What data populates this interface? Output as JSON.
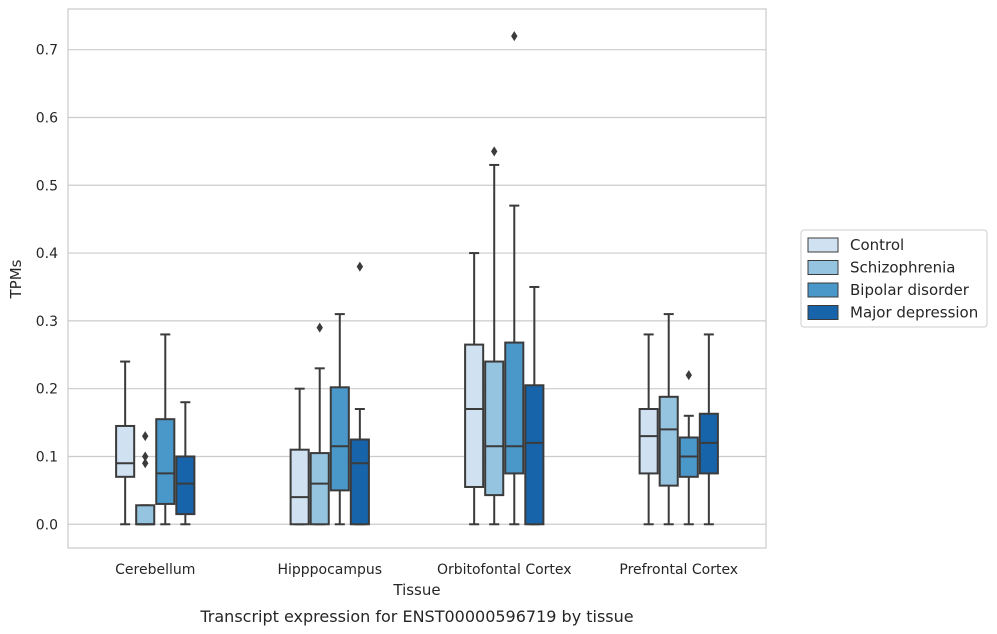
{
  "chart_data": {
    "type": "box",
    "categories": [
      "Cerebellum",
      "Hipppocampus",
      "Orbitofontal Cortex",
      "Prefrontal Cortex"
    ],
    "xlabel": "Tissue",
    "ylabel": "TPMs",
    "caption": "Transcript expression for ENST00000596719 by tissue",
    "ylim": [
      -0.035,
      0.76
    ],
    "yticks": [
      0.0,
      0.1,
      0.2,
      0.3,
      0.4,
      0.5,
      0.6,
      0.7
    ],
    "ytick_labels": [
      "0.0",
      "0.1",
      "0.2",
      "0.3",
      "0.4",
      "0.5",
      "0.6",
      "0.7"
    ],
    "grid": "horizontal",
    "legend_position": "right",
    "series": [
      {
        "name": "Control",
        "color": "#d0e1f2",
        "boxes": [
          {
            "whislo": 0.0,
            "q1": 0.07,
            "med": 0.09,
            "q3": 0.145,
            "whishi": 0.24,
            "fliers": []
          },
          {
            "whislo": 0.0,
            "q1": 0.0,
            "med": 0.04,
            "q3": 0.11,
            "whishi": 0.2,
            "fliers": []
          },
          {
            "whislo": 0.0,
            "q1": 0.055,
            "med": 0.17,
            "q3": 0.265,
            "whishi": 0.4,
            "fliers": []
          },
          {
            "whislo": 0.0,
            "q1": 0.075,
            "med": 0.13,
            "q3": 0.17,
            "whishi": 0.28,
            "fliers": []
          }
        ]
      },
      {
        "name": "Schizophrenia",
        "color": "#94c4df",
        "boxes": [
          {
            "whislo": 0.0,
            "q1": 0.0,
            "med": 0.0,
            "q3": 0.028,
            "whishi": 0.028,
            "fliers": [
              0.09,
              0.1,
              0.13
            ]
          },
          {
            "whislo": 0.0,
            "q1": 0.0,
            "med": 0.06,
            "q3": 0.105,
            "whishi": 0.23,
            "fliers": [
              0.29
            ]
          },
          {
            "whislo": 0.0,
            "q1": 0.043,
            "med": 0.115,
            "q3": 0.24,
            "whishi": 0.53,
            "fliers": [
              0.55
            ]
          },
          {
            "whislo": 0.0,
            "q1": 0.057,
            "med": 0.14,
            "q3": 0.188,
            "whishi": 0.31,
            "fliers": []
          }
        ]
      },
      {
        "name": "Bipolar disorder",
        "color": "#4a98c9",
        "boxes": [
          {
            "whislo": 0.0,
            "q1": 0.03,
            "med": 0.075,
            "q3": 0.155,
            "whishi": 0.28,
            "fliers": []
          },
          {
            "whislo": 0.0,
            "q1": 0.05,
            "med": 0.115,
            "q3": 0.202,
            "whishi": 0.31,
            "fliers": []
          },
          {
            "whislo": 0.0,
            "q1": 0.075,
            "med": 0.115,
            "q3": 0.268,
            "whishi": 0.47,
            "fliers": [
              0.72
            ]
          },
          {
            "whislo": 0.0,
            "q1": 0.07,
            "med": 0.1,
            "q3": 0.128,
            "whishi": 0.16,
            "fliers": [
              0.22
            ]
          }
        ]
      },
      {
        "name": "Major depression",
        "color": "#1764ab",
        "boxes": [
          {
            "whislo": 0.0,
            "q1": 0.015,
            "med": 0.06,
            "q3": 0.1,
            "whishi": 0.18,
            "fliers": []
          },
          {
            "whislo": 0.0,
            "q1": 0.0,
            "med": 0.09,
            "q3": 0.125,
            "whishi": 0.17,
            "fliers": [
              0.38
            ]
          },
          {
            "whislo": 0.0,
            "q1": 0.0,
            "med": 0.12,
            "q3": 0.205,
            "whishi": 0.35,
            "fliers": []
          },
          {
            "whislo": 0.0,
            "q1": 0.075,
            "med": 0.12,
            "q3": 0.163,
            "whishi": 0.28,
            "fliers": []
          }
        ]
      }
    ]
  }
}
